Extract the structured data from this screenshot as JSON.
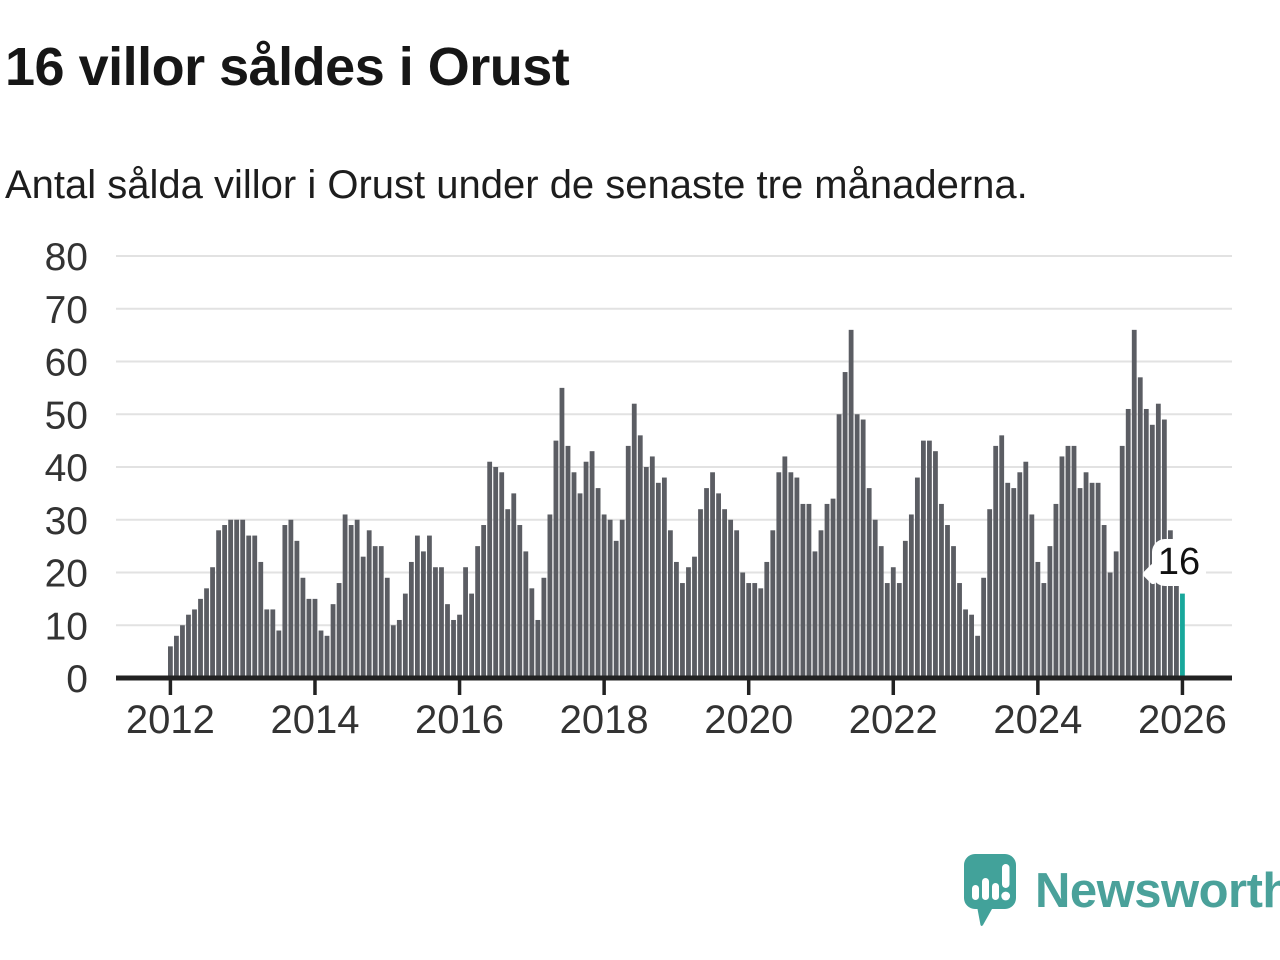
{
  "title": "16 villor såldes i Orust",
  "subtitle": "Antal sålda villor i Orust under de senaste tre månaderna.",
  "callout": {
    "label": "16"
  },
  "logo": {
    "text": "Newsworthy"
  },
  "colors": {
    "bar": "#5b5d63",
    "highlight": "#18a79b",
    "axis": "#222222",
    "grid": "#e2e2e2",
    "tick_label": "#333333",
    "logo": "#4aa19a"
  },
  "chart_data": {
    "type": "bar",
    "title": "16 villor såldes i Orust",
    "subtitle": "Antal sålda villor i Orust under de senaste tre månaderna.",
    "unit": "antal sålda villor (rullande tre månader)",
    "frequency": "monthly",
    "start_month": "2012-01",
    "end_month": "2026-01",
    "ylim": [
      0,
      80
    ],
    "y_ticks": [
      0,
      10,
      20,
      30,
      40,
      50,
      60,
      70,
      80
    ],
    "x_tick_labels": [
      "2012",
      "2014",
      "2016",
      "2018",
      "2020",
      "2022",
      "2024",
      "2026"
    ],
    "grid": true,
    "highlight_last_value": 16,
    "highlight_last_label": "16",
    "series": [
      {
        "name": "Antal sålda villor i Orust, senaste tre månaderna",
        "values": [
          6,
          8,
          10,
          12,
          13,
          15,
          17,
          21,
          28,
          29,
          30,
          30,
          30,
          27,
          27,
          22,
          13,
          13,
          9,
          29,
          30,
          26,
          19,
          15,
          15,
          9,
          8,
          14,
          18,
          31,
          29,
          30,
          23,
          28,
          25,
          25,
          19,
          10,
          11,
          16,
          22,
          27,
          24,
          27,
          21,
          21,
          14,
          11,
          12,
          21,
          16,
          25,
          29,
          41,
          40,
          39,
          32,
          35,
          29,
          24,
          17,
          11,
          19,
          31,
          45,
          55,
          44,
          39,
          35,
          41,
          43,
          36,
          31,
          30,
          26,
          30,
          44,
          52,
          46,
          40,
          42,
          37,
          38,
          28,
          22,
          18,
          21,
          23,
          32,
          36,
          39,
          35,
          32,
          30,
          28,
          20,
          18,
          18,
          17,
          22,
          28,
          39,
          42,
          39,
          38,
          33,
          33,
          24,
          28,
          33,
          34,
          50,
          58,
          66,
          50,
          49,
          36,
          30,
          25,
          18,
          21,
          18,
          26,
          31,
          38,
          45,
          45,
          43,
          33,
          29,
          25,
          18,
          13,
          12,
          8,
          19,
          32,
          44,
          46,
          37,
          36,
          39,
          41,
          31,
          22,
          18,
          25,
          33,
          42,
          44,
          44,
          36,
          39,
          37,
          37,
          29,
          20,
          24,
          44,
          51,
          66,
          57,
          51,
          48,
          52,
          49,
          28,
          19,
          16
        ]
      }
    ]
  }
}
